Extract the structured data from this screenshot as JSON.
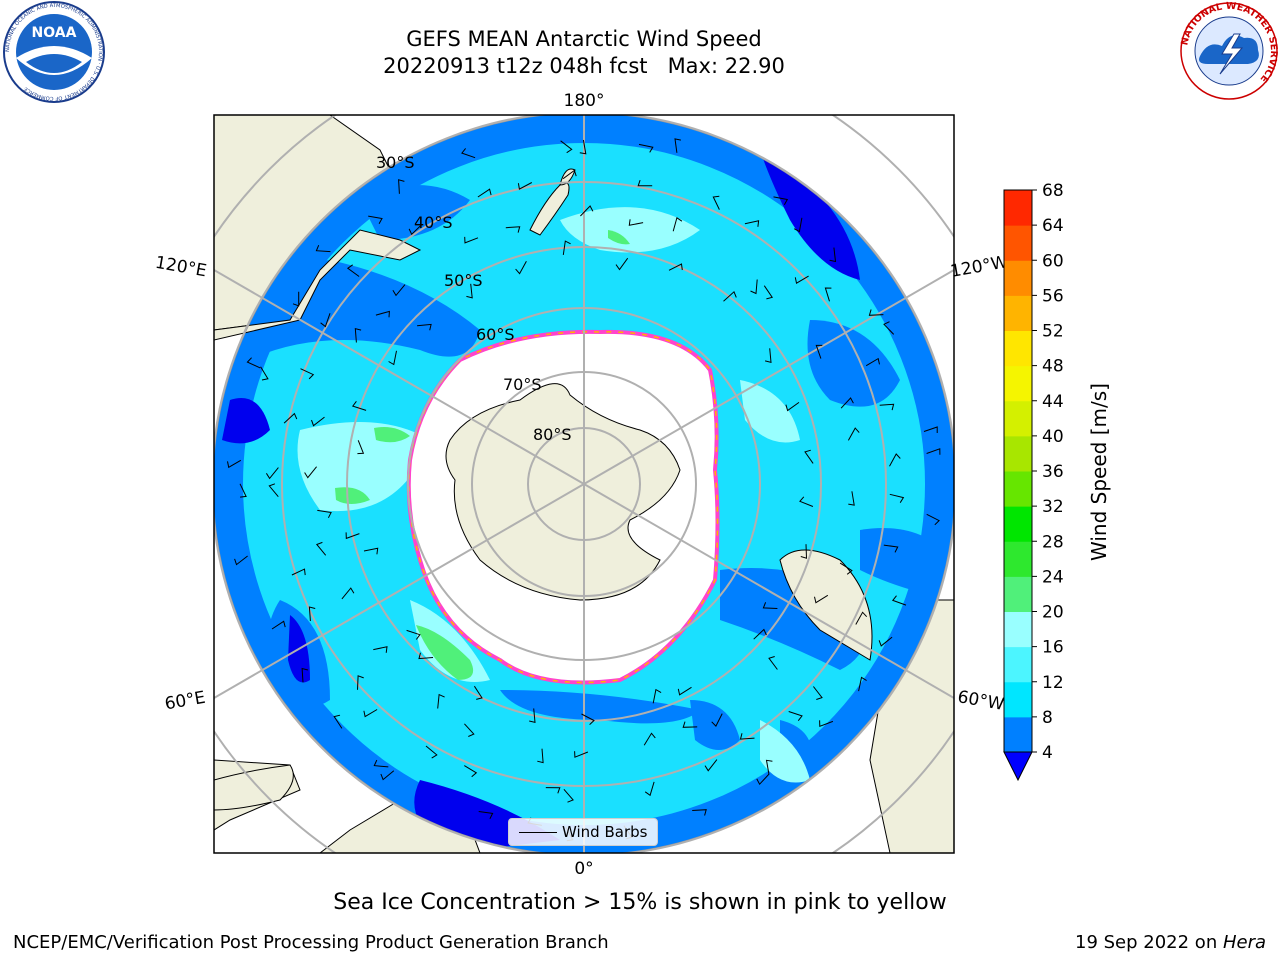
{
  "title": {
    "line1": "GEFS MEAN Antarctic Wind Speed",
    "line2": "20220913 t12z 048h fcst   Max: 22.90"
  },
  "logos": {
    "noaa": {
      "text": "NOAA",
      "ring": "NATIONAL OCEANIC AND ATMOSPHERIC ADMINISTRATION · U.S. DEPARTMENT OF COMMERCE"
    },
    "nws": {
      "ring": "NATIONAL WEATHER SERVICE"
    }
  },
  "map": {
    "projection": "south-polar-stereographic",
    "longitude_labels": {
      "top": "180°",
      "bottom": "0°",
      "upper_left": "120°E",
      "upper_right": "120°W",
      "lower_left": "60°E",
      "lower_right": "60°W"
    },
    "latitude_labels": [
      "30°S",
      "40°S",
      "50°S",
      "60°S",
      "70°S",
      "80°S"
    ],
    "legend": {
      "label": "Wind Barbs"
    },
    "colors": {
      "land": "#efefdc",
      "ice_edge": "#ff44cc",
      "grid": "#b0b0b0"
    }
  },
  "colorbar": {
    "label": "Wind Speed [m/s]",
    "ticks": [
      "4",
      "8",
      "12",
      "16",
      "20",
      "24",
      "28",
      "32",
      "36",
      "40",
      "44",
      "48",
      "52",
      "56",
      "60",
      "64",
      "68"
    ],
    "colors": [
      "#0000ff",
      "#0080ff",
      "#00e6ff",
      "#4cf5ff",
      "#99ffff",
      "#50f07a",
      "#2ee82e",
      "#00e600",
      "#66e600",
      "#a8e600",
      "#d4f000",
      "#f5f500",
      "#ffe600",
      "#ffb400",
      "#ff8c00",
      "#ff5500",
      "#ff2800",
      "#ff0000"
    ],
    "extend": "min"
  },
  "caption": "Sea Ice Concentration > 15% is shown in pink to yellow",
  "footer": {
    "left": "NCEP/EMC/Verification Post Processing Product Generation Branch",
    "right_prefix": "19 Sep 2022 on ",
    "right_host": "Hera"
  }
}
